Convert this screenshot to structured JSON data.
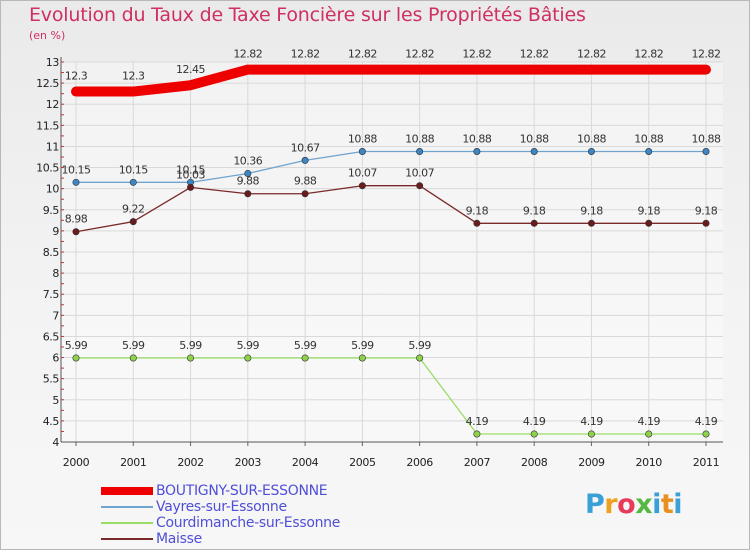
{
  "title": "Evolution du Taux de Taxe Foncière sur les Propriétés Bâties",
  "subtitle": "(en %)",
  "logo": "Proxiti",
  "chart_data": {
    "type": "line",
    "categories": [
      "2000",
      "2001",
      "2002",
      "2003",
      "2004",
      "2005",
      "2006",
      "2007",
      "2008",
      "2009",
      "2010",
      "2011"
    ],
    "ylim": [
      4,
      13
    ],
    "yticks": [
      "4",
      "4.5",
      "5",
      "5.5",
      "6",
      "6.5",
      "7",
      "7.5",
      "8",
      "8.5",
      "9",
      "9.5",
      "10",
      "10.5",
      "11",
      "11.5",
      "12",
      "12.5",
      "13"
    ],
    "grid": true,
    "legend_position": "bottom-left",
    "series": [
      {
        "name": "BOUTIGNY-SUR-ESSONNE",
        "color": "#ee0000",
        "values": [
          12.3,
          12.3,
          12.45,
          12.82,
          12.82,
          12.82,
          12.82,
          12.82,
          12.82,
          12.82,
          12.82,
          12.82
        ],
        "labels": [
          "12.3",
          "12.3",
          "12.45",
          "12.82",
          "12.82",
          "12.82",
          "12.82",
          "12.82",
          "12.82",
          "12.82",
          "12.82",
          "12.82"
        ]
      },
      {
        "name": "Vayres-sur-Essonne",
        "color": "#6fa4cf",
        "values": [
          10.15,
          10.15,
          10.15,
          10.36,
          10.67,
          10.88,
          10.88,
          10.88,
          10.88,
          10.88,
          10.88,
          10.88
        ],
        "labels": [
          "10.15",
          "10.15",
          "10.15",
          "10.36",
          "10.67",
          "10.88",
          "10.88",
          "10.88",
          "10.88",
          "10.88",
          "10.88",
          "10.88"
        ]
      },
      {
        "name": "Courdimanche-sur-Essonne",
        "color": "#99dd66",
        "values": [
          5.99,
          5.99,
          5.99,
          5.99,
          5.99,
          5.99,
          5.99,
          4.19,
          4.19,
          4.19,
          4.19,
          4.19
        ],
        "labels": [
          "5.99",
          "5.99",
          "5.99",
          "5.99",
          "5.99",
          "5.99",
          "5.99",
          "4.19",
          "4.19",
          "4.19",
          "4.19",
          "4.19"
        ]
      },
      {
        "name": "Maisse",
        "color": "#7a2a2a",
        "values": [
          8.98,
          9.22,
          10.03,
          9.88,
          9.88,
          10.07,
          10.07,
          9.18,
          9.18,
          9.18,
          9.18,
          9.18
        ],
        "labels": [
          "8.98",
          "9.22",
          "10.03",
          "9.88",
          "9.88",
          "10.07",
          "10.07",
          "9.18",
          "9.18",
          "9.18",
          "9.18",
          "9.18"
        ]
      }
    ]
  }
}
